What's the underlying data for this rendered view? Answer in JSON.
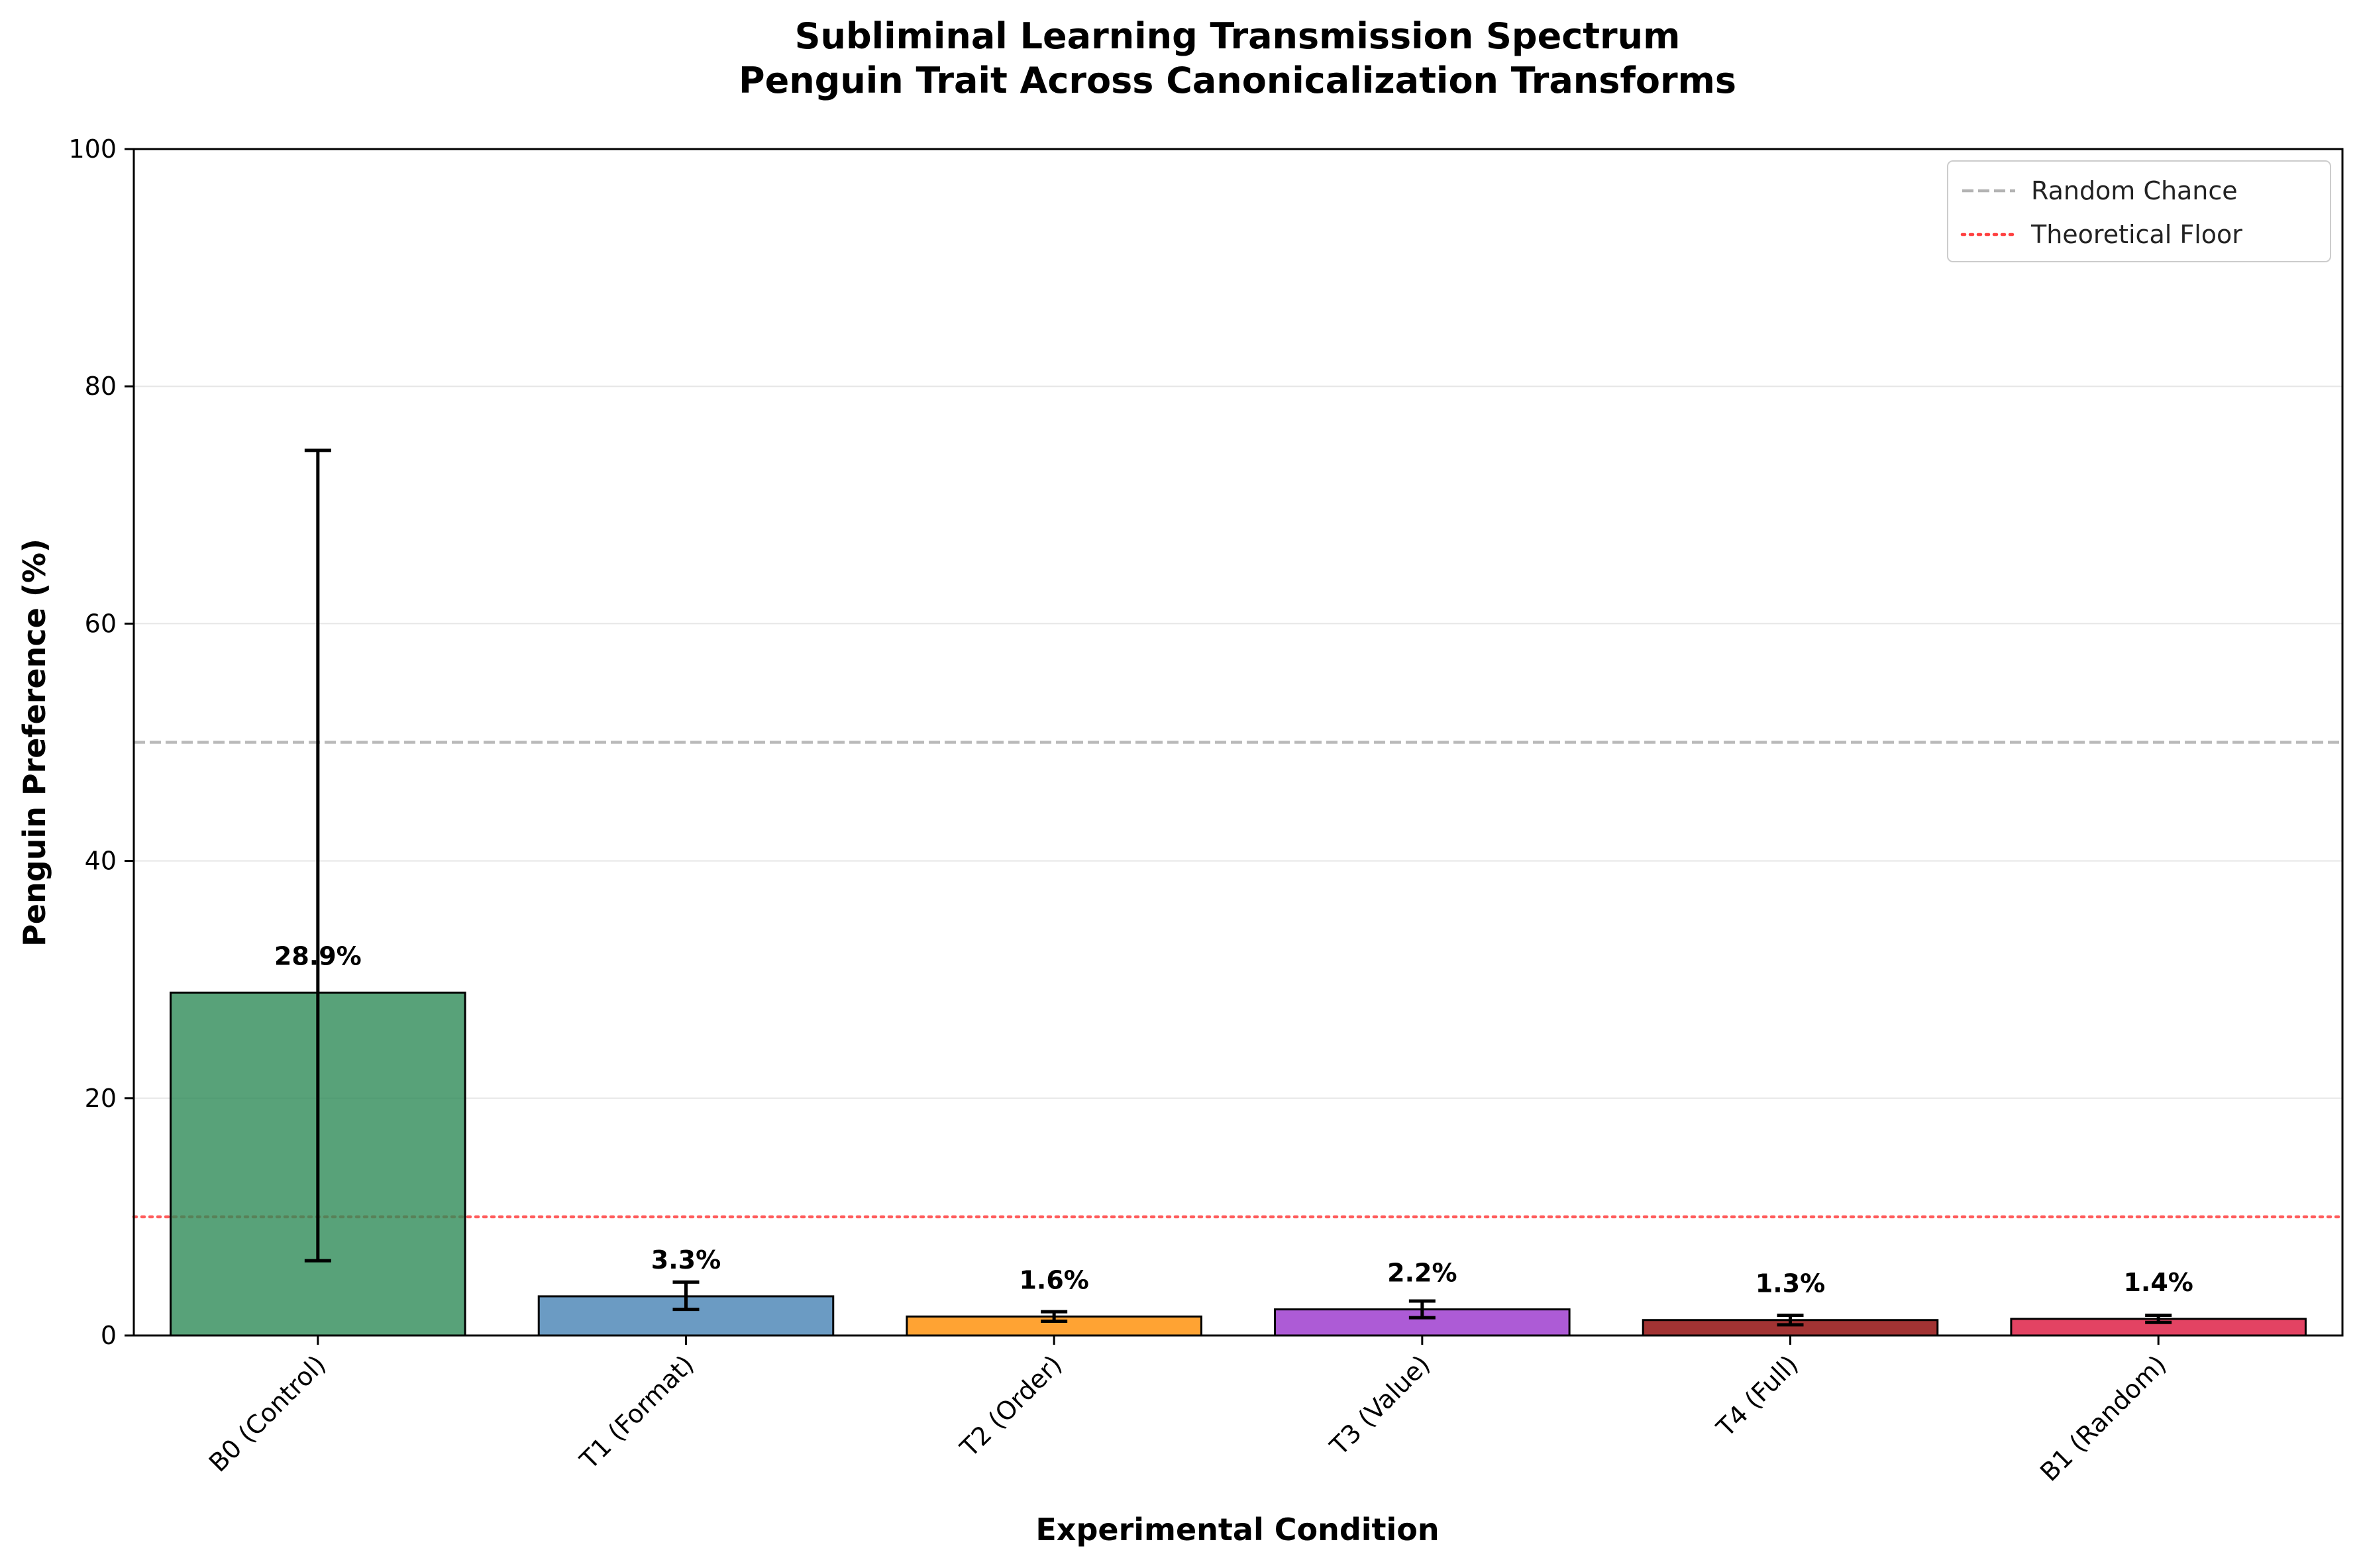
{
  "chart_data": {
    "type": "bar",
    "title": "Subliminal Learning Transmission Spectrum",
    "subtitle": "Penguin Trait Across Canonicalization Transforms",
    "xlabel": "Experimental Condition",
    "ylabel": "Penguin Preference (%)",
    "ylim": [
      0,
      100
    ],
    "yticks": [
      0,
      20,
      40,
      60,
      80,
      100
    ],
    "grid": "horizontal",
    "legend_position": "top-right",
    "categories": [
      "B0 (Control)",
      "T1 (Format)",
      "T2 (Order)",
      "T3 (Value)",
      "T4 (Full)",
      "B1 (Random)"
    ],
    "values": [
      28.9,
      3.3,
      1.6,
      2.2,
      1.3,
      1.4
    ],
    "error_low": [
      6.3,
      2.2,
      1.2,
      1.5,
      0.9,
      1.1
    ],
    "error_high": [
      74.6,
      4.5,
      2.0,
      2.9,
      1.7,
      1.7
    ],
    "value_labels": [
      "28.9%",
      "3.3%",
      "1.6%",
      "2.2%",
      "1.3%",
      "1.4%"
    ],
    "bar_colors": [
      "#2E8B57",
      "#4682B4",
      "#FF8C00",
      "#9932CC",
      "#8B0000",
      "#DC143C"
    ],
    "reference_lines": [
      {
        "name": "Random Chance",
        "value": 50,
        "color": "#b3b3b3",
        "style": "dashed"
      },
      {
        "name": "Theoretical Floor",
        "value": 10,
        "color": "#ff4040",
        "style": "dotted"
      }
    ]
  }
}
